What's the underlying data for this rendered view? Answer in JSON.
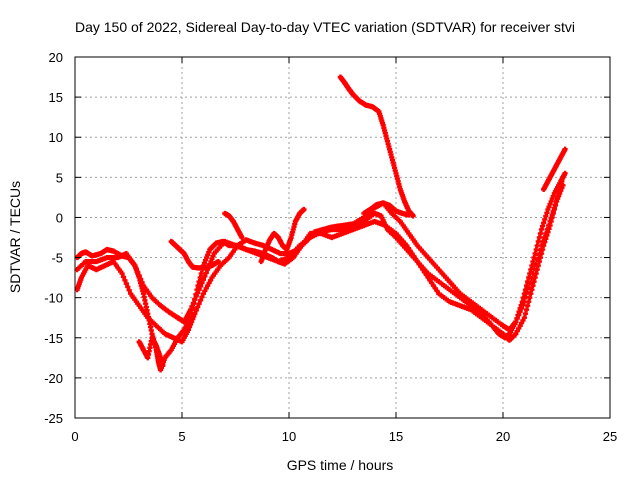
{
  "chart_data": {
    "type": "scatter",
    "title": "Day 150 of 2022, Sidereal Day-to-day VTEC variation (SDTVAR) for receiver stvi",
    "xlabel": "GPS time / hours",
    "ylabel": "SDTVAR / TECUs",
    "xlim": [
      0,
      25
    ],
    "ylim": [
      -25,
      20
    ],
    "xticks": [
      0,
      5,
      10,
      15,
      20,
      25
    ],
    "yticks": [
      -25,
      -20,
      -15,
      -10,
      -5,
      0,
      5,
      10,
      15,
      20
    ],
    "grid": true,
    "legend": "none",
    "marker_color": "#ff0000",
    "series": [
      {
        "x": [
          0.1,
          0.3,
          0.5,
          0.8,
          1.2,
          1.5,
          1.8,
          2.2,
          2.5,
          2.8,
          3.0,
          3.2,
          3.4,
          3.6,
          3.8,
          3.9,
          4.0,
          4.2,
          4.5,
          4.8,
          5.1,
          5.4,
          5.7,
          6.0,
          6.3,
          6.6,
          6.9,
          7.2,
          7.6,
          8.0,
          8.5,
          9.0,
          9.5,
          10.0,
          10.5,
          11.0,
          11.5,
          12.0,
          12.5,
          13.0,
          13.5,
          14.0,
          14.3,
          14.6,
          15.0,
          15.5,
          16.0,
          16.5,
          17.0,
          17.5,
          18.0,
          18.5,
          19.0,
          19.5,
          19.8,
          20.1,
          20.3,
          20.6,
          20.9,
          21.2,
          21.5,
          21.8,
          22.1,
          22.4,
          22.7,
          22.9
        ],
        "y": [
          -5.0,
          -4.5,
          -4.3,
          -4.8,
          -4.5,
          -4.0,
          -4.2,
          -4.8,
          -5.0,
          -6.0,
          -7.5,
          -9.5,
          -12.0,
          -14.5,
          -16.5,
          -18.0,
          -19.0,
          -17.5,
          -16.5,
          -15.0,
          -14.0,
          -12.5,
          -9.0,
          -6.0,
          -4.0,
          -3.2,
          -3.0,
          -3.5,
          -3.5,
          -4.0,
          -4.5,
          -5.0,
          -5.5,
          -5.0,
          -3.5,
          -2.5,
          -1.8,
          -1.5,
          -1.5,
          -1.0,
          -0.5,
          0.5,
          0.2,
          -1.5,
          -2.5,
          -4.0,
          -5.5,
          -7.0,
          -8.0,
          -9.0,
          -10.0,
          -11.0,
          -12.0,
          -13.5,
          -14.5,
          -15.0,
          -14.5,
          -13.0,
          -10.5,
          -7.5,
          -4.5,
          -1.5,
          1.0,
          3.0,
          4.5,
          5.5
        ]
      },
      {
        "x": [
          0.1,
          0.5,
          1.0,
          1.5,
          2.0,
          2.4,
          2.8,
          3.2,
          3.6,
          4.0,
          4.4,
          4.8,
          5.1,
          5.4,
          5.8,
          6.2,
          6.5,
          7.0,
          7.5,
          8.0,
          8.4,
          8.8,
          9.2,
          9.5,
          9.8,
          10.2,
          10.6,
          11.0,
          11.5,
          12.0,
          12.5,
          13.0,
          13.5,
          14.0,
          14.5,
          15.0,
          15.5,
          16.0,
          16.5,
          17.0,
          17.5,
          18.0,
          18.5,
          19.0,
          19.5,
          20.0,
          20.3,
          20.6,
          21.0,
          21.3,
          21.6,
          21.9,
          22.2,
          22.5,
          22.8
        ],
        "y": [
          -6.5,
          -5.5,
          -5.5,
          -5.0,
          -5.0,
          -4.5,
          -6.0,
          -8.5,
          -10.0,
          -11.0,
          -11.8,
          -12.5,
          -13.0,
          -11.5,
          -9.0,
          -6.5,
          -4.5,
          -3.0,
          -3.5,
          -4.0,
          -4.2,
          -4.5,
          -5.0,
          -5.5,
          -5.8,
          -5.0,
          -3.5,
          -2.0,
          -2.0,
          -2.5,
          -2.0,
          -1.5,
          -1.0,
          -0.5,
          -1.0,
          -2.0,
          -3.5,
          -5.5,
          -7.5,
          -9.5,
          -10.5,
          -11.0,
          -11.5,
          -12.5,
          -13.5,
          -14.5,
          -15.3,
          -14.5,
          -12.5,
          -9.5,
          -6.5,
          -3.5,
          -1.0,
          2.0,
          4.0
        ]
      },
      {
        "x": [
          0.1,
          0.3,
          0.6,
          1.0,
          1.4,
          1.8,
          2.2,
          2.6,
          3.0,
          3.4,
          3.8,
          4.2,
          4.6,
          5.0,
          5.3,
          5.6,
          6.0,
          6.4,
          6.8,
          7.2,
          7.6,
          8.0,
          8.4,
          8.8,
          9.2,
          9.6,
          10.0,
          10.4,
          10.8,
          11.2,
          11.6,
          12.0,
          12.5,
          13.0,
          13.5,
          14.0,
          14.4,
          14.8,
          15.2,
          15.6,
          16.0,
          16.5,
          17.0,
          17.5,
          18.0,
          18.5,
          19.0,
          19.5,
          20.0,
          20.3,
          20.6,
          21.0,
          21.4,
          21.8,
          22.2,
          22.5,
          22.8
        ],
        "y": [
          -9.0,
          -7.5,
          -6.0,
          -6.5,
          -6.0,
          -5.5,
          -7.0,
          -9.5,
          -11.0,
          -12.5,
          -13.5,
          -14.5,
          -15.0,
          -15.5,
          -14.0,
          -12.0,
          -9.5,
          -7.5,
          -6.0,
          -5.0,
          -3.5,
          -2.8,
          -3.2,
          -3.5,
          -4.0,
          -4.5,
          -4.5,
          -4.0,
          -3.0,
          -1.8,
          -1.5,
          -1.2,
          -1.0,
          -0.8,
          0.0,
          1.2,
          1.8,
          0.5,
          -0.5,
          -2.0,
          -3.5,
          -5.0,
          -6.5,
          -8.0,
          -9.5,
          -10.5,
          -11.5,
          -12.5,
          -13.5,
          -14.0,
          -13.0,
          -10.5,
          -7.0,
          -3.5,
          -0.5,
          2.0,
          5.0
        ]
      },
      {
        "x": [
          12.4,
          12.6,
          12.8,
          13.0,
          13.3,
          13.6,
          13.9,
          14.2,
          14.4,
          14.6,
          14.8,
          15.0,
          15.2,
          15.4,
          15.6,
          15.8
        ],
        "y": [
          17.5,
          16.8,
          16.0,
          15.3,
          14.5,
          14.0,
          13.8,
          13.2,
          11.5,
          9.5,
          7.5,
          5.5,
          3.5,
          2.0,
          0.8,
          0.2
        ]
      },
      {
        "x": [
          4.5,
          4.7,
          4.9,
          5.1,
          5.3,
          5.5,
          5.8,
          6.1,
          6.4,
          6.7
        ],
        "y": [
          -3.0,
          -3.5,
          -4.0,
          -4.5,
          -5.5,
          -6.2,
          -6.3,
          -6.2,
          -6.0,
          -5.5
        ]
      },
      {
        "x": [
          3.0,
          3.2,
          3.4,
          3.6,
          3.8,
          4.0,
          4.1
        ],
        "y": [
          -15.5,
          -16.5,
          -17.5,
          -15.0,
          -16.0,
          -17.5,
          -18.5
        ]
      },
      {
        "x": [
          8.7,
          8.9,
          9.1,
          9.3,
          9.5,
          9.7,
          9.9,
          10.1,
          10.3,
          10.5,
          10.7
        ],
        "y": [
          -5.5,
          -4.0,
          -2.8,
          -2.0,
          -2.5,
          -3.5,
          -4.0,
          -2.5,
          -0.5,
          0.5,
          1.0
        ]
      },
      {
        "x": [
          7.0,
          7.2,
          7.4,
          7.6,
          7.8
        ],
        "y": [
          0.5,
          0.2,
          -0.5,
          -1.5,
          -2.5
        ]
      },
      {
        "x": [
          21.9,
          22.1,
          22.3,
          22.5,
          22.7,
          22.9
        ],
        "y": [
          3.5,
          4.5,
          5.5,
          6.5,
          7.5,
          8.5
        ]
      },
      {
        "x": [
          13.5,
          13.8,
          14.1,
          14.4,
          14.7,
          15.0,
          15.3,
          15.6
        ],
        "y": [
          0.5,
          1.0,
          1.6,
          1.8,
          1.5,
          0.8,
          0.5,
          0.3
        ]
      }
    ]
  }
}
